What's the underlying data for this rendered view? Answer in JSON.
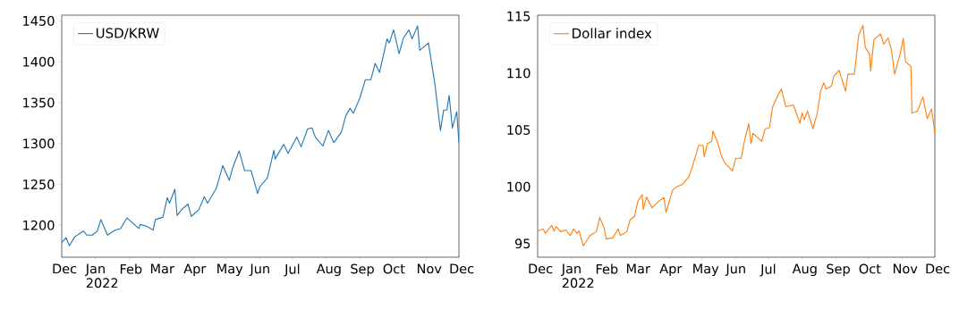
{
  "chart_data": [
    {
      "type": "line",
      "legend": "top left",
      "line_style": "solid",
      "marker": "none",
      "xlim": [
        "2021-12-01",
        "2022-12-01"
      ],
      "xticks": [
        {
          "value": "2021-12-01",
          "label": "Dec"
        },
        {
          "value": "2022-01-01",
          "label": "Jan 2022"
        },
        {
          "value": "2022-02-01",
          "label": "Feb"
        },
        {
          "value": "2022-03-01",
          "label": "Mar"
        },
        {
          "value": "2022-04-01",
          "label": "Apr"
        },
        {
          "value": "2022-05-01",
          "label": "May"
        },
        {
          "value": "2022-06-01",
          "label": "Jun"
        },
        {
          "value": "2022-07-01",
          "label": "Jul"
        },
        {
          "value": "2022-08-01",
          "label": "Aug"
        },
        {
          "value": "2022-09-01",
          "label": "Sep"
        },
        {
          "value": "2022-10-01",
          "label": "Oct"
        },
        {
          "value": "2022-11-01",
          "label": "Nov"
        },
        {
          "value": "2022-12-01",
          "label": "Dec"
        }
      ],
      "ylim": [
        1161,
        1457
      ],
      "yticks": [
        1200,
        1250,
        1300,
        1350,
        1400,
        1450
      ],
      "series": [
        {
          "name": "USD/KRW",
          "color": "#1f77b4",
          "x": [
            "2021-12-01",
            "2021-12-05",
            "2021-12-08",
            "2021-12-13",
            "2021-12-21",
            "2021-12-24",
            "2021-12-29",
            "2022-01-01",
            "2022-01-03",
            "2022-01-06",
            "2022-01-12",
            "2022-01-19",
            "2022-01-24",
            "2022-01-30",
            "2022-02-10",
            "2022-02-11",
            "2022-02-17",
            "2022-02-23",
            "2022-02-25",
            "2022-03-04",
            "2022-03-08",
            "2022-03-10",
            "2022-03-15",
            "2022-03-17",
            "2022-03-21",
            "2022-03-27",
            "2022-03-30",
            "2022-04-06",
            "2022-04-11",
            "2022-04-14",
            "2022-04-22",
            "2022-04-28",
            "2022-05-04",
            "2022-05-07",
            "2022-05-13",
            "2022-05-18",
            "2022-05-24",
            "2022-05-30",
            "2022-06-01",
            "2022-06-08",
            "2022-06-14",
            "2022-06-15",
            "2022-06-23",
            "2022-06-27",
            "2022-07-05",
            "2022-07-09",
            "2022-07-15",
            "2022-07-19",
            "2022-07-22",
            "2022-07-29",
            "2022-08-03",
            "2022-08-08",
            "2022-08-15",
            "2022-08-19",
            "2022-08-23",
            "2022-08-26",
            "2022-09-01",
            "2022-09-06",
            "2022-09-11",
            "2022-09-15",
            "2022-09-19",
            "2022-09-26",
            "2022-09-28",
            "2022-10-02",
            "2022-10-07",
            "2022-10-11",
            "2022-10-16",
            "2022-10-19",
            "2022-10-24",
            "2022-10-26",
            "2022-11-03",
            "2022-11-09",
            "2022-11-14",
            "2022-11-17",
            "2022-11-20",
            "2022-11-22",
            "2022-11-25",
            "2022-11-29",
            "2022-12-01"
          ],
          "values": [
            1179,
            1185,
            1175,
            1186,
            1193,
            1188,
            1188,
            1191,
            1194,
            1207,
            1188,
            1194,
            1196,
            1209,
            1196,
            1201,
            1199,
            1194,
            1207,
            1210,
            1234,
            1227,
            1244,
            1212,
            1219,
            1226,
            1211,
            1219,
            1235,
            1227,
            1245,
            1273,
            1255,
            1270,
            1291,
            1267,
            1267,
            1239,
            1247,
            1258,
            1292,
            1281,
            1299,
            1288,
            1308,
            1296,
            1318,
            1319,
            1308,
            1297,
            1316,
            1301,
            1314,
            1334,
            1343,
            1337,
            1356,
            1378,
            1378,
            1398,
            1387,
            1428,
            1423,
            1439,
            1410,
            1429,
            1439,
            1428,
            1444,
            1414,
            1423,
            1372,
            1316,
            1341,
            1341,
            1359,
            1319,
            1339,
            1301
          ]
        }
      ]
    },
    {
      "type": "line",
      "legend": "top left",
      "line_style": "solid",
      "marker": "none",
      "xlim": [
        "2021-12-01",
        "2022-12-01"
      ],
      "xticks": [
        {
          "value": "2021-12-01",
          "label": "Dec"
        },
        {
          "value": "2022-01-01",
          "label": "Jan 2022"
        },
        {
          "value": "2022-02-01",
          "label": "Feb"
        },
        {
          "value": "2022-03-01",
          "label": "Mar"
        },
        {
          "value": "2022-04-01",
          "label": "Apr"
        },
        {
          "value": "2022-05-01",
          "label": "May"
        },
        {
          "value": "2022-06-01",
          "label": "Jun"
        },
        {
          "value": "2022-07-01",
          "label": "Jul"
        },
        {
          "value": "2022-08-01",
          "label": "Aug"
        },
        {
          "value": "2022-09-01",
          "label": "Sep"
        },
        {
          "value": "2022-10-01",
          "label": "Oct"
        },
        {
          "value": "2022-11-01",
          "label": "Nov"
        },
        {
          "value": "2022-12-01",
          "label": "Dec"
        }
      ],
      "ylim": [
        93.8,
        115.1
      ],
      "yticks": [
        95,
        100,
        105,
        110,
        115
      ],
      "series": [
        {
          "name": "Dollar index",
          "color": "#ff7f0e",
          "x": [
            "2021-12-01",
            "2021-12-06",
            "2021-12-08",
            "2021-12-14",
            "2021-12-16",
            "2021-12-18",
            "2021-12-22",
            "2021-12-27",
            "2021-12-31",
            "2022-01-03",
            "2022-01-06",
            "2022-01-08",
            "2022-01-12",
            "2022-01-18",
            "2022-01-24",
            "2022-01-27",
            "2022-01-31",
            "2022-02-02",
            "2022-02-08",
            "2022-02-13",
            "2022-02-15",
            "2022-02-21",
            "2022-02-24",
            "2022-02-28",
            "2022-03-03",
            "2022-03-07",
            "2022-03-08",
            "2022-03-11",
            "2022-03-16",
            "2022-03-22",
            "2022-03-27",
            "2022-03-29",
            "2022-04-04",
            "2022-04-08",
            "2022-04-13",
            "2022-04-19",
            "2022-04-22",
            "2022-04-28",
            "2022-05-02",
            "2022-05-03",
            "2022-05-06",
            "2022-05-10",
            "2022-05-11",
            "2022-05-15",
            "2022-05-19",
            "2022-05-22",
            "2022-05-29",
            "2022-06-01",
            "2022-06-06",
            "2022-06-09",
            "2022-06-13",
            "2022-06-15",
            "2022-06-17",
            "2022-06-25",
            "2022-06-28",
            "2022-07-02",
            "2022-07-05",
            "2022-07-10",
            "2022-07-13",
            "2022-07-17",
            "2022-07-24",
            "2022-07-26",
            "2022-07-30",
            "2022-08-01",
            "2022-08-03",
            "2022-08-06",
            "2022-08-11",
            "2022-08-15",
            "2022-08-18",
            "2022-08-21",
            "2022-08-23",
            "2022-08-28",
            "2022-08-30",
            "2022-09-04",
            "2022-09-10",
            "2022-09-12",
            "2022-09-18",
            "2022-09-22",
            "2022-09-26",
            "2022-09-28",
            "2022-10-02",
            "2022-10-03",
            "2022-10-06",
            "2022-10-12",
            "2022-10-15",
            "2022-10-19",
            "2022-10-22",
            "2022-10-25",
            "2022-10-30",
            "2022-11-02",
            "2022-11-04",
            "2022-11-09",
            "2022-11-10",
            "2022-11-15",
            "2022-11-20",
            "2022-11-24",
            "2022-11-28",
            "2022-12-01"
          ],
          "values": [
            96.1,
            96.3,
            95.9,
            96.6,
            96.1,
            96.5,
            96.05,
            96.2,
            95.7,
            96.3,
            95.9,
            96.1,
            94.8,
            95.7,
            96.05,
            97.3,
            96.4,
            95.4,
            95.5,
            96.3,
            95.7,
            96.05,
            97.1,
            97.4,
            98.7,
            99.3,
            98.0,
            99.1,
            98.15,
            98.7,
            99.05,
            97.75,
            99.7,
            100.0,
            100.2,
            100.9,
            101.7,
            103.65,
            103.65,
            102.65,
            103.8,
            104.0,
            104.9,
            104.0,
            102.7,
            102.1,
            101.4,
            102.5,
            102.5,
            104.0,
            105.55,
            103.8,
            104.7,
            104.0,
            105.1,
            105.2,
            107.05,
            108.1,
            108.6,
            107.05,
            107.2,
            106.65,
            105.6,
            106.5,
            105.9,
            106.65,
            105.1,
            106.5,
            108.4,
            109.15,
            108.6,
            108.85,
            109.7,
            110.25,
            108.4,
            109.9,
            109.9,
            113.35,
            114.2,
            112.3,
            111.65,
            110.2,
            112.95,
            113.45,
            112.55,
            113.1,
            112.1,
            109.9,
            111.65,
            113.05,
            111.0,
            110.6,
            106.5,
            106.65,
            107.9,
            106.0,
            106.85,
            104.7
          ]
        }
      ]
    }
  ]
}
